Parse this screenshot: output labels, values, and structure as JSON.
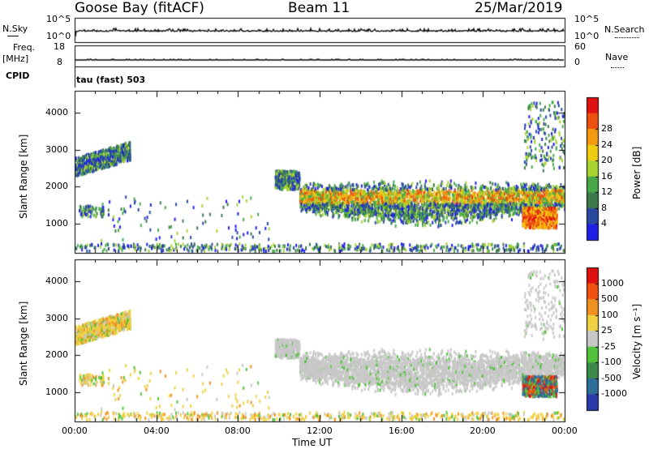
{
  "header": {
    "station": "Goose Bay (fitACF)",
    "beam": "Beam 11",
    "date": "25/Mar/2019"
  },
  "strip_labels": {
    "nsky": "N.Sky",
    "freq_top": "Freq.",
    "freq_unit": "[MHz]",
    "cpid": "CPID",
    "nsearch": "N.Search",
    "nave": "Nave",
    "cpid_value": "tau (fast) 503"
  },
  "chart_data": [
    {
      "type": "line",
      "name": "noise-sky-strip",
      "ylabel": "N.Sky",
      "right_label": "N.Search",
      "y_tick_labels_left": [
        "10^5",
        "10^0"
      ],
      "y_tick_labels_right": [
        "10^5",
        "10^0"
      ],
      "series": [
        {
          "name": "N.Sky",
          "style": "solid",
          "level": 10
        },
        {
          "name": "N.Search",
          "style": "dotted",
          "level": 10
        }
      ]
    },
    {
      "type": "line",
      "name": "frequency-nave-strip",
      "ylabel": "Freq. [MHz]",
      "right_label": "Nave",
      "y_tick_labels_left": [
        "18",
        "8"
      ],
      "y_tick_labels_right": [
        "60",
        "0"
      ],
      "series": [
        {
          "name": "Freq.",
          "style": "solid",
          "value": 10
        },
        {
          "name": "Nave",
          "style": "dotted",
          "value": 20
        }
      ]
    },
    {
      "type": "heatmap",
      "name": "power-panel",
      "ylabel": "Slant Range [km]",
      "yticks": [
        1000,
        2000,
        3000,
        4000
      ],
      "ylim": [
        200,
        4600
      ],
      "xlim_hours": [
        0,
        24
      ],
      "colorbar": {
        "label": "Power [dB]",
        "ticks": [
          "4",
          "8",
          "12",
          "16",
          "20",
          "24",
          "28"
        ],
        "colors": [
          "#1f1fe6",
          "#2a4aa0",
          "#3c7a4a",
          "#48a84a",
          "#a8d430",
          "#f0cc10",
          "#f59a10",
          "#ee5010",
          "#e21010"
        ]
      }
    },
    {
      "type": "heatmap",
      "name": "velocity-panel",
      "ylabel": "Slant Range [km]",
      "yticks": [
        1000,
        2000,
        3000,
        4000
      ],
      "ylim": [
        200,
        4600
      ],
      "xlim_hours": [
        0,
        24
      ],
      "xlabel": "Time UT",
      "xtick_labels": [
        "00:00",
        "04:00",
        "08:00",
        "12:00",
        "16:00",
        "20:00",
        "00:00"
      ],
      "colorbar": {
        "label": "Velocity [m s⁻¹]",
        "ticks": [
          "1000",
          "500",
          "100",
          "25",
          "-25",
          "-100",
          "-500",
          "-1000"
        ],
        "colors": [
          "#2a3aa8",
          "#2e6e9a",
          "#3c8a4a",
          "#52c23a",
          "#c8c8c8",
          "#f0d040",
          "#f09020",
          "#f05010",
          "#e01010"
        ]
      }
    }
  ]
}
